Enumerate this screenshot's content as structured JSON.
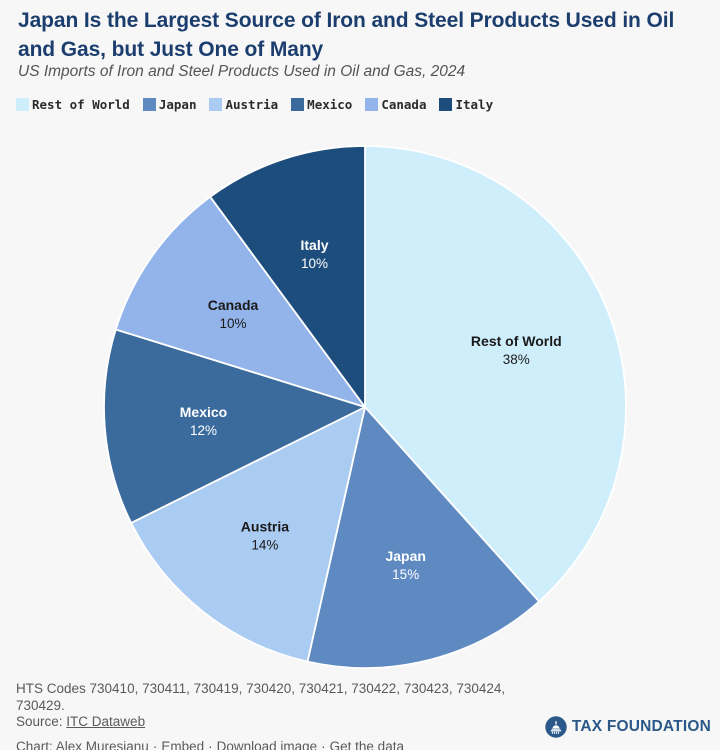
{
  "header": {
    "title": "Japan Is the Largest Source of Iron and Steel Products Used in Oil and Gas, but Just One of Many",
    "subtitle": "US Imports of Iron and Steel Products Used in Oil and Gas, 2024"
  },
  "chart_data": {
    "type": "pie",
    "title": "US Imports of Iron and Steel Products Used in Oil and Gas, 2024",
    "legend_position": "top",
    "start_angle_deg": 0,
    "direction": "clockwise",
    "slices": [
      {
        "label": "Rest of World",
        "value_pct": 38,
        "color": "#cfeefb",
        "label_color": "#1a1a1a"
      },
      {
        "label": "Japan",
        "value_pct": 15,
        "color": "#5e8ac1",
        "label_color": "#ffffff"
      },
      {
        "label": "Austria",
        "value_pct": 14,
        "color": "#aacbf2",
        "label_color": "#1a1a1a"
      },
      {
        "label": "Mexico",
        "value_pct": 12,
        "color": "#3b6b9d",
        "label_color": "#ffffff"
      },
      {
        "label": "Canada",
        "value_pct": 10,
        "color": "#92b4ea",
        "label_color": "#1a1a1a"
      },
      {
        "label": "Italy",
        "value_pct": 10,
        "color": "#1d4d7d",
        "label_color": "#ffffff"
      }
    ]
  },
  "footer": {
    "hts_line": "HTS Codes 730410, 730411, 730419, 730420, 730421, 730422, 730423, 730424, 730429.",
    "source_label": "Source:",
    "source_link": "ITC Dataweb",
    "credit": "Chart: Alex Muresianu",
    "links": [
      "Embed",
      "Download image",
      "Get the data"
    ],
    "separator": "·"
  },
  "branding": {
    "logo_text": "TAX FOUNDATION",
    "logo_icon": "capitol-dome-icon",
    "brand_navy": "#2b5889"
  },
  "colors": {
    "background": "#f7f7f7",
    "title": "#1c3e6e",
    "subtitle": "#545454",
    "footer_text": "#5a5a5a"
  }
}
